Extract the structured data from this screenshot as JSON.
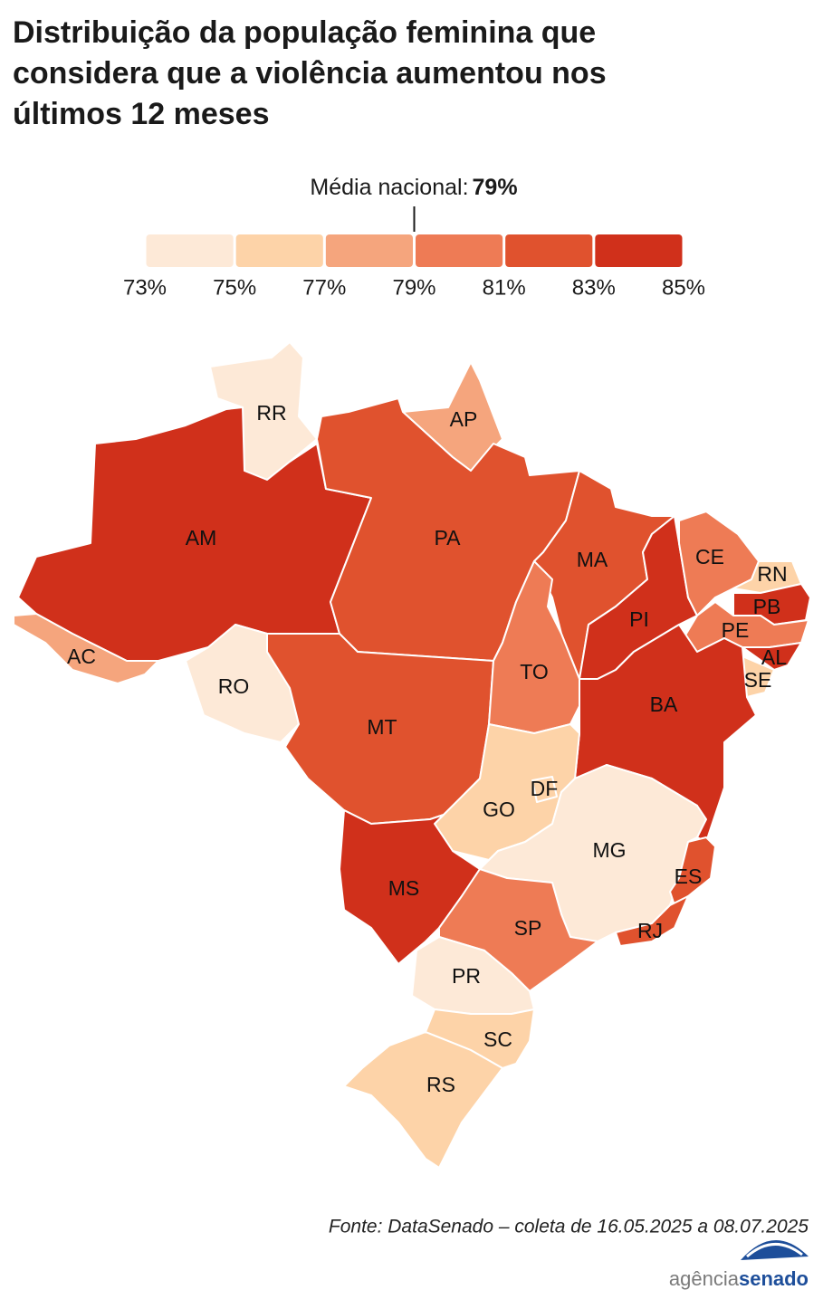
{
  "title": "Distribuição da população feminina que considera que a violência aumentou nos últimos 12 meses",
  "national_average": {
    "label": "Média nacional:",
    "value": {
      "value": 79,
      "label": "79%"
    }
  },
  "legend": {
    "ticks": [
      {
        "value": 73,
        "label": "73%"
      },
      {
        "value": 75,
        "label": "75%"
      },
      {
        "value": 77,
        "label": "77%"
      },
      {
        "value": 79,
        "label": "79%"
      },
      {
        "value": 81,
        "label": "81%"
      },
      {
        "value": 83,
        "label": "83%"
      },
      {
        "value": 85,
        "label": "85%"
      }
    ],
    "colors": [
      "#fde9d7",
      "#fdd3a8",
      "#f5a57d",
      "#ee7b55",
      "#e0522e",
      "#d0301b"
    ]
  },
  "states": [
    {
      "label": "RR",
      "color": "#fde9d7"
    },
    {
      "label": "AP",
      "color": "#f5a57d"
    },
    {
      "label": "AM",
      "color": "#d0301b"
    },
    {
      "label": "PA",
      "color": "#e0522e"
    },
    {
      "label": "AC",
      "color": "#f5a57d"
    },
    {
      "label": "RO",
      "color": "#fde9d7"
    },
    {
      "label": "MT",
      "color": "#e0522e"
    },
    {
      "label": "MA",
      "color": "#e0522e"
    },
    {
      "label": "TO",
      "color": "#ee7b55"
    },
    {
      "label": "PI",
      "color": "#d0301b"
    },
    {
      "label": "CE",
      "color": "#ee7b55"
    },
    {
      "label": "RN",
      "color": "#fdd3a8"
    },
    {
      "label": "PB",
      "color": "#d0301b"
    },
    {
      "label": "PE",
      "color": "#ee7b55"
    },
    {
      "label": "AL",
      "color": "#d0301b"
    },
    {
      "label": "SE",
      "color": "#fdd3a8"
    },
    {
      "label": "BA",
      "color": "#d0301b"
    },
    {
      "label": "GO",
      "color": "#fdd3a8"
    },
    {
      "label": "DF",
      "color": "#fdd3a8"
    },
    {
      "label": "MG",
      "color": "#fde9d7"
    },
    {
      "label": "ES",
      "color": "#e0522e"
    },
    {
      "label": "RJ",
      "color": "#e0522e"
    },
    {
      "label": "MS",
      "color": "#d0301b"
    },
    {
      "label": "SP",
      "color": "#ee7b55"
    },
    {
      "label": "PR",
      "color": "#fde9d7"
    },
    {
      "label": "SC",
      "color": "#fdd3a8"
    },
    {
      "label": "RS",
      "color": "#fdd3a8"
    }
  ],
  "source": "Fonte: DataSenado – coleta de 16.05.2025 a 08.07.2025",
  "logo": {
    "part1": "agência",
    "part2": "senado"
  }
}
